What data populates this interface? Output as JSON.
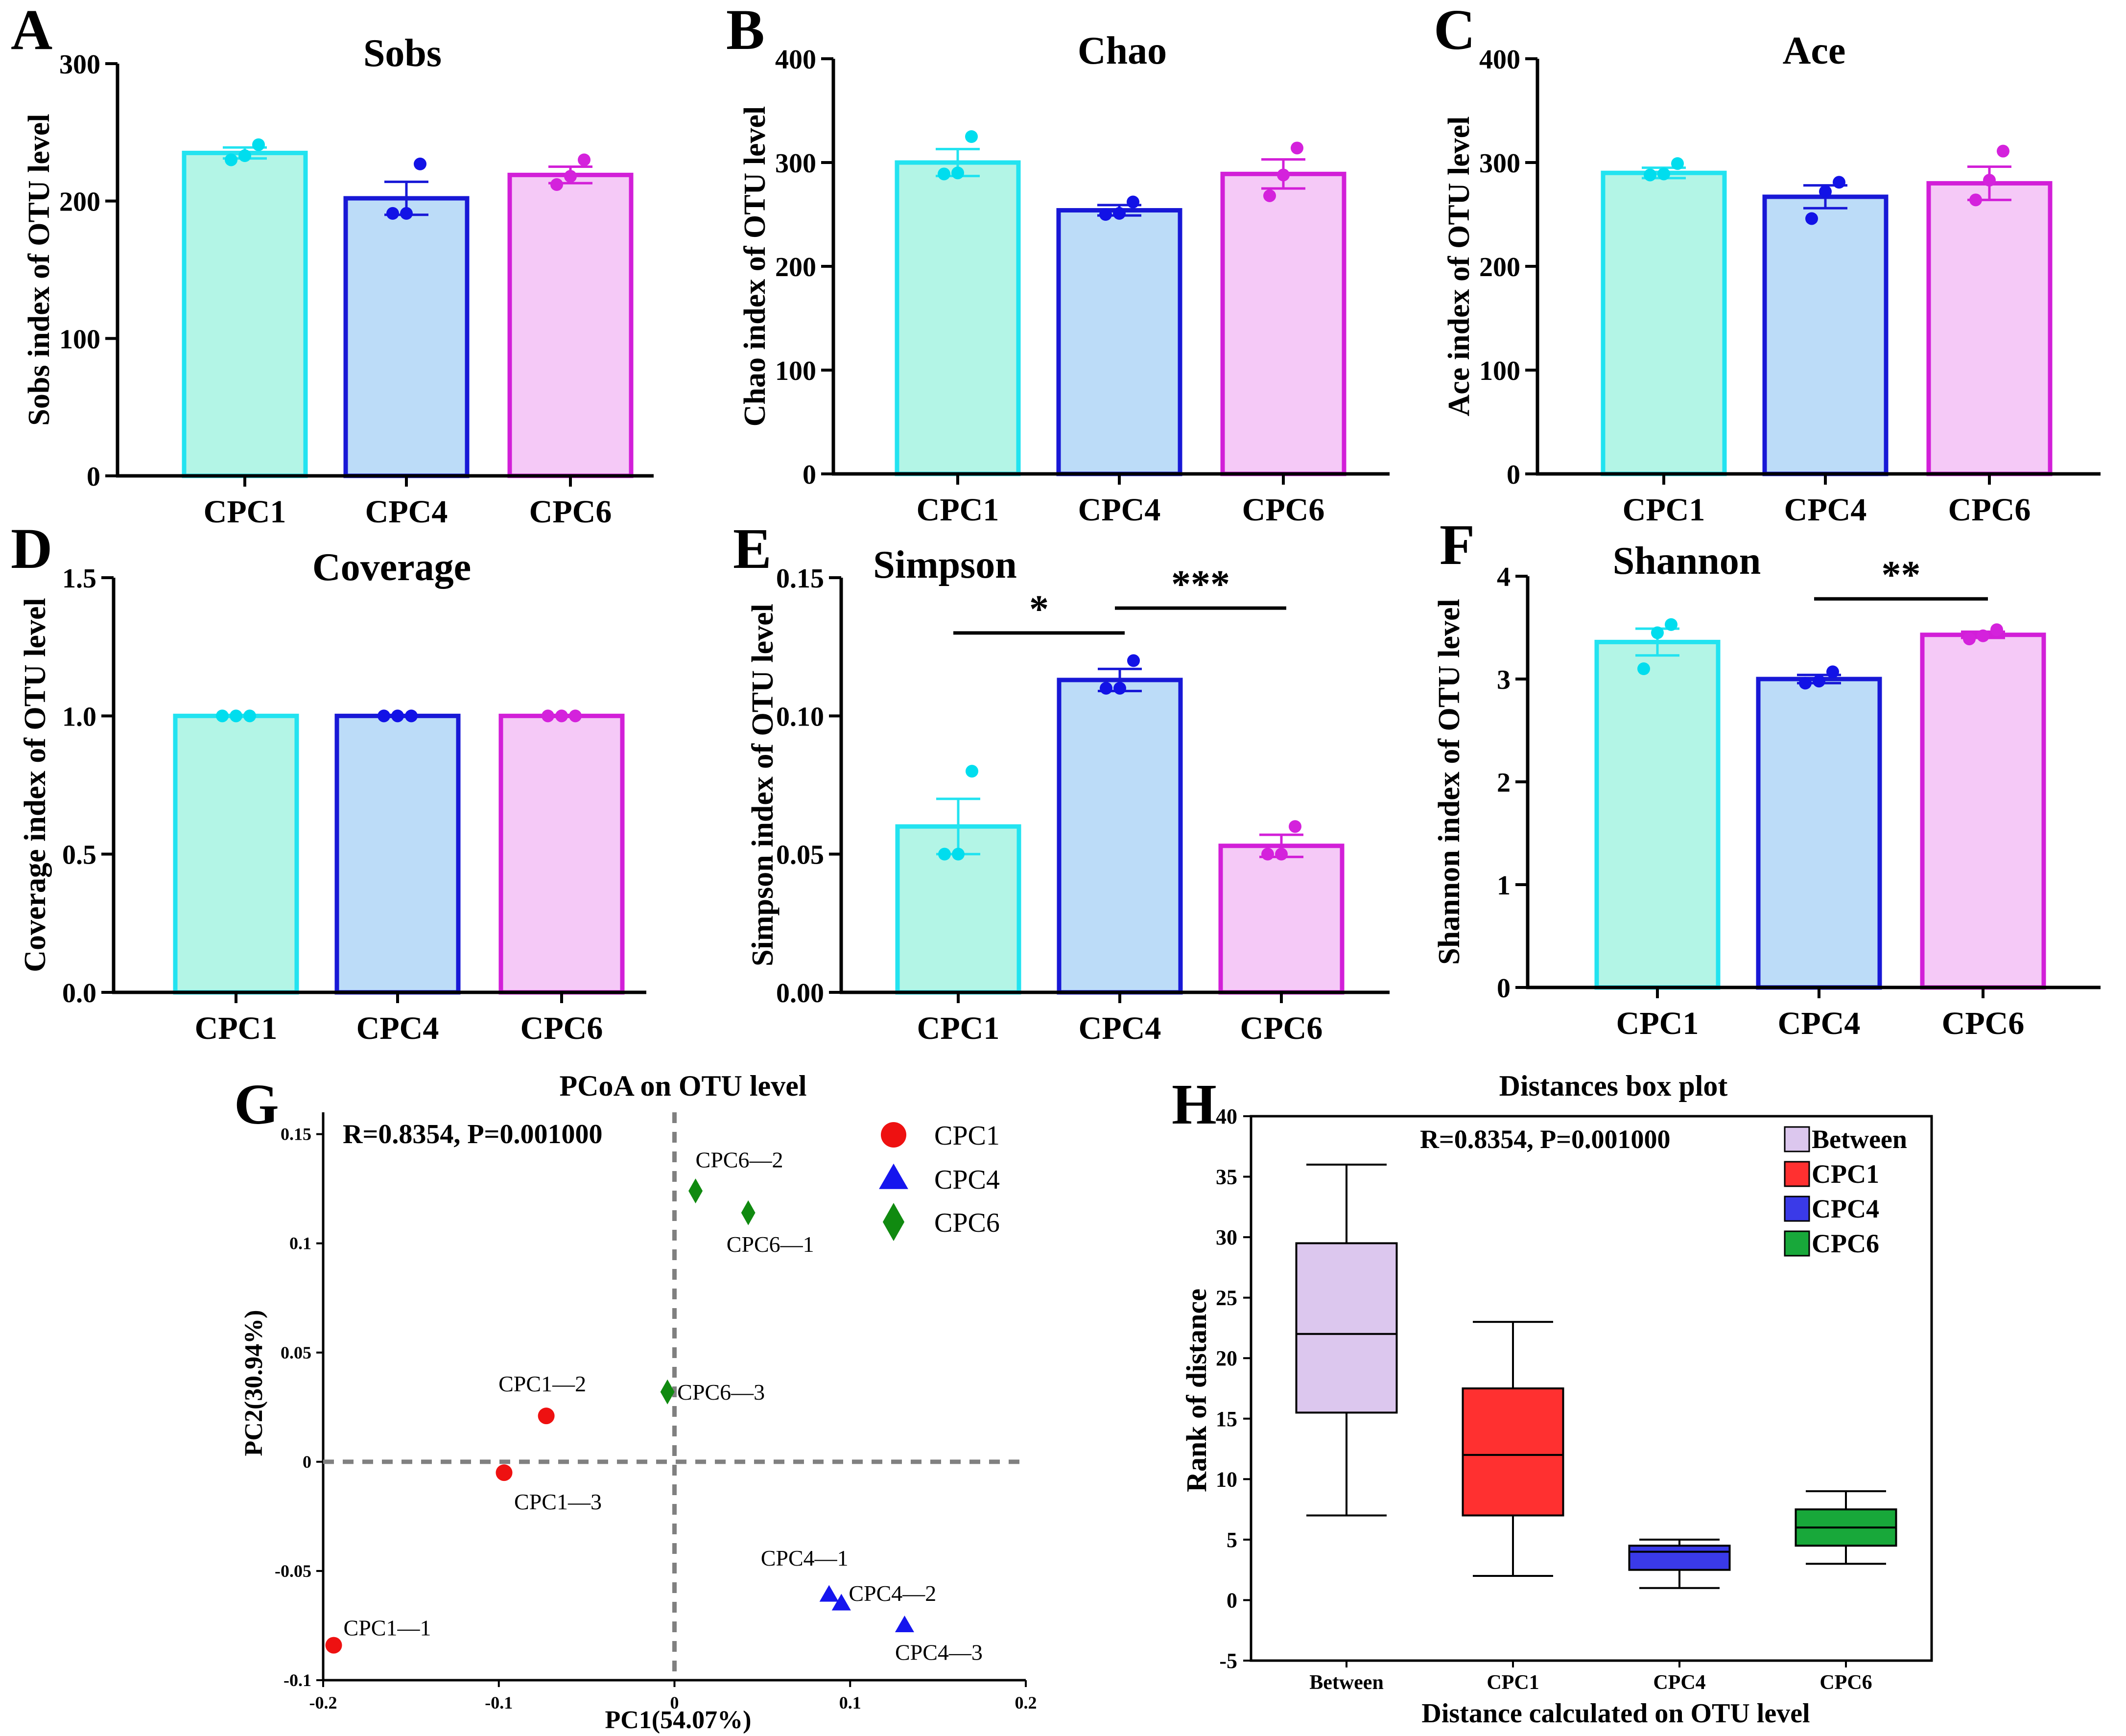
{
  "colors": {
    "cpc1_stroke": "#22e3f0",
    "cpc1_fill": "#b3f5e6",
    "cpc4_stroke": "#1818d6",
    "cpc4_fill": "#bcdcf8",
    "cpc6_stroke": "#d21fd8",
    "cpc6_fill": "#f5c9f7",
    "dot_cpc1": "#00ddee",
    "dot_cpc4": "#1212e6",
    "dot_cpc6": "#d422dc",
    "pcoa_cpc1": "#ee1111",
    "pcoa_cpc4": "#1515ee",
    "pcoa_cpc6": "#108a10",
    "box_between": "#dcc7ee",
    "box_cpc1": "#ff3030",
    "box_cpc4": "#3a3ae8",
    "box_cpc6": "#18a83a"
  },
  "chart_data": [
    {
      "type": "bar",
      "panel": "A",
      "title": "Sobs",
      "ylabel": "Sobs index of OTU level",
      "categories": [
        "CPC1",
        "CPC4",
        "CPC6"
      ],
      "values": [
        235,
        202,
        219
      ],
      "errors": [
        4,
        12,
        6
      ],
      "points": [
        [
          230,
          233,
          241
        ],
        [
          191,
          191,
          227
        ],
        [
          212,
          218,
          230
        ]
      ],
      "ylim": [
        0,
        300
      ],
      "yticks": [
        0,
        100,
        200,
        300
      ],
      "ytick_labels": [
        "0",
        "100",
        "200",
        "300"
      ],
      "significance": []
    },
    {
      "type": "bar",
      "panel": "B",
      "title": "Chao",
      "ylabel": "Chao index of OTU level",
      "categories": [
        "CPC1",
        "CPC4",
        "CPC6"
      ],
      "values": [
        300,
        254,
        289
      ],
      "errors": [
        13,
        5,
        14
      ],
      "points": [
        [
          289,
          290,
          325
        ],
        [
          250,
          251,
          262
        ],
        [
          268,
          288,
          314
        ]
      ],
      "ylim": [
        0,
        400
      ],
      "yticks": [
        0,
        100,
        200,
        300,
        400
      ],
      "ytick_labels": [
        "0",
        "100",
        "200",
        "300",
        "400"
      ],
      "significance": []
    },
    {
      "type": "bar",
      "panel": "C",
      "title": "Ace",
      "ylabel": "Ace index of OTU level",
      "categories": [
        "CPC1",
        "CPC4",
        "CPC6"
      ],
      "values": [
        290,
        267,
        280
      ],
      "errors": [
        5,
        11,
        16
      ],
      "points": [
        [
          288,
          289,
          299
        ],
        [
          246,
          272,
          281
        ],
        [
          264,
          283,
          311
        ]
      ],
      "ylim": [
        0,
        400
      ],
      "yticks": [
        0,
        100,
        200,
        300,
        400
      ],
      "ytick_labels": [
        "0",
        "100",
        "200",
        "300",
        "400"
      ],
      "significance": []
    },
    {
      "type": "bar",
      "panel": "D",
      "title": "Coverage",
      "ylabel": "Coverage index of OTU level",
      "categories": [
        "CPC1",
        "CPC4",
        "CPC6"
      ],
      "values": [
        1.0,
        1.0,
        1.0
      ],
      "errors": [
        0,
        0,
        0
      ],
      "points": [
        [
          1.0,
          1.0,
          1.0
        ],
        [
          1.0,
          1.0,
          1.0
        ],
        [
          1.0,
          1.0,
          1.0
        ]
      ],
      "ylim": [
        0,
        1.5
      ],
      "yticks": [
        0,
        0.5,
        1.0,
        1.5
      ],
      "ytick_labels": [
        "0.0",
        "0.5",
        "1.0",
        "1.5"
      ],
      "significance": []
    },
    {
      "type": "bar",
      "panel": "E",
      "title": "Simpson",
      "ylabel": "Simpson index of OTU level",
      "categories": [
        "CPC1",
        "CPC4",
        "CPC6"
      ],
      "values": [
        0.06,
        0.113,
        0.053
      ],
      "errors": [
        0.01,
        0.004,
        0.004
      ],
      "points": [
        [
          0.05,
          0.05,
          0.08
        ],
        [
          0.11,
          0.11,
          0.12
        ],
        [
          0.05,
          0.05,
          0.06
        ]
      ],
      "ylim": [
        0,
        0.15
      ],
      "yticks": [
        0,
        0.05,
        0.1,
        0.15
      ],
      "ytick_labels": [
        "0.00",
        "0.05",
        "0.10",
        "0.15"
      ],
      "significance": [
        {
          "from": 0,
          "to": 1,
          "label": "*",
          "level": 0.13
        },
        {
          "from": 1,
          "to": 2,
          "label": "***",
          "level": 0.139
        }
      ]
    },
    {
      "type": "bar",
      "panel": "F",
      "title": "Shannon",
      "ylabel": "Shannon index of OTU level",
      "categories": [
        "CPC1",
        "CPC4",
        "CPC6"
      ],
      "values": [
        3.36,
        3.0,
        3.43
      ],
      "errors": [
        0.13,
        0.04,
        0.03
      ],
      "points": [
        [
          3.1,
          3.45,
          3.53
        ],
        [
          2.96,
          2.98,
          3.07
        ],
        [
          3.39,
          3.42,
          3.48
        ]
      ],
      "ylim": [
        0,
        4
      ],
      "yticks": [
        0,
        1,
        2,
        3,
        4
      ],
      "ytick_labels": [
        "0",
        "1",
        "2",
        "3",
        "4"
      ],
      "significance": [
        {
          "from": 1,
          "to": 2,
          "label": "**",
          "level": 3.78
        }
      ]
    },
    {
      "type": "scatter",
      "panel": "G",
      "title": "PCoA on OTU level",
      "xlabel": "PC1(54.07%)",
      "ylabel": "PC2(30.94%)",
      "annotation": "R=0.8354, P=0.001000",
      "xlim": [
        -0.2,
        0.2
      ],
      "ylim": [
        -0.1,
        0.16
      ],
      "xticks": [
        -0.2,
        -0.1,
        0,
        0.1,
        0.2
      ],
      "xtick_labels": [
        "-0.2",
        "-0.1",
        "0",
        "0.1",
        "0.2"
      ],
      "yticks": [
        -0.1,
        -0.05,
        0,
        0.05,
        0.1,
        0.15
      ],
      "ytick_labels": [
        "-0.1",
        "-0.05",
        "0",
        "0.05",
        "0.1",
        "0.15"
      ],
      "legend": [
        "CPC1",
        "CPC4",
        "CPC6"
      ],
      "series": [
        {
          "name": "CPC1",
          "marker": "circle",
          "points": [
            {
              "label": "CPC1—1",
              "x": -0.194,
              "y": -0.084
            },
            {
              "label": "CPC1—2",
              "x": -0.073,
              "y": 0.021
            },
            {
              "label": "CPC1—3",
              "x": -0.097,
              "y": -0.005
            }
          ]
        },
        {
          "name": "CPC4",
          "marker": "triangle",
          "points": [
            {
              "label": "CPC4—1",
              "x": 0.088,
              "y": -0.061
            },
            {
              "label": "CPC4—2",
              "x": 0.095,
              "y": -0.065
            },
            {
              "label": "CPC4—3",
              "x": 0.131,
              "y": -0.075
            }
          ]
        },
        {
          "name": "CPC6",
          "marker": "diamond",
          "points": [
            {
              "label": "CPC6—1",
              "x": 0.042,
              "y": 0.114
            },
            {
              "label": "CPC6—2",
              "x": 0.012,
              "y": 0.124
            },
            {
              "label": "CPC6—3",
              "x": -0.004,
              "y": 0.032
            }
          ]
        }
      ]
    },
    {
      "type": "box",
      "panel": "H",
      "title": "Distances box plot",
      "xlabel": "Distance calculated on OTU level",
      "ylabel": "Rank of distance",
      "annotation": "R=0.8354, P=0.001000",
      "ylim": [
        -5,
        40
      ],
      "yticks": [
        -5,
        0,
        5,
        10,
        15,
        20,
        25,
        30,
        35,
        40
      ],
      "ytick_labels": [
        "-5",
        "0",
        "5",
        "10",
        "15",
        "20",
        "25",
        "30",
        "35",
        "40"
      ],
      "categories": [
        "Between",
        "CPC1",
        "CPC4",
        "CPC6"
      ],
      "legend": [
        "Between",
        "CPC1",
        "CPC4",
        "CPC6"
      ],
      "boxes": [
        {
          "min": 7,
          "q1": 15.5,
          "median": 22,
          "q3": 29.5,
          "max": 36
        },
        {
          "min": 2,
          "q1": 7,
          "median": 12,
          "q3": 17.5,
          "max": 23
        },
        {
          "min": 1,
          "q1": 2.5,
          "median": 4,
          "q3": 4.5,
          "max": 5
        },
        {
          "min": 3,
          "q1": 4.5,
          "median": 6,
          "q3": 7.5,
          "max": 9
        }
      ]
    }
  ]
}
